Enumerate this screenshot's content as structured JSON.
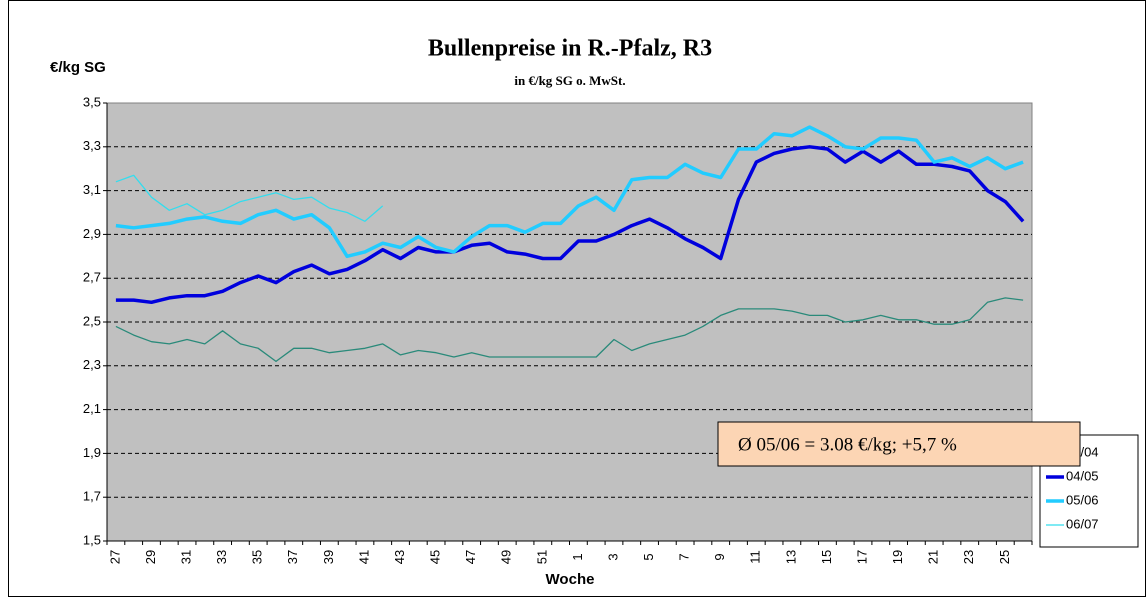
{
  "chart_data": {
    "type": "line",
    "title": "Bullenpreise in R.-Pfalz, R3",
    "subtitle": "in €/kg SG o. MwSt.",
    "y_label": "€/kg SG",
    "x_label": "Woche",
    "annotation": "Ø 05/06 = 3.08 €/kg; +5,7 %",
    "categories": [
      "27",
      null,
      "29",
      null,
      "31",
      null,
      "33",
      null,
      "35",
      null,
      "37",
      null,
      "39",
      null,
      "41",
      null,
      "43",
      null,
      "45",
      null,
      "47",
      null,
      "49",
      null,
      "51",
      null,
      "1",
      null,
      "3",
      null,
      "5",
      null,
      "7",
      null,
      "9",
      null,
      "11",
      null,
      "13",
      null,
      "15",
      null,
      "17",
      null,
      "19",
      null,
      "21",
      null,
      "23",
      null,
      "25",
      null
    ],
    "ylim": [
      1.5,
      3.5
    ],
    "yticks": [
      {
        "value": 1.5,
        "label": "1,5"
      },
      {
        "value": 1.7,
        "label": "1,7"
      },
      {
        "value": 1.9,
        "label": "1,9"
      },
      {
        "value": 2.1,
        "label": "2,1"
      },
      {
        "value": 2.3,
        "label": "2,3"
      },
      {
        "value": 2.5,
        "label": "2,5"
      },
      {
        "value": 2.7,
        "label": "2,7"
      },
      {
        "value": 2.9,
        "label": "2,9"
      },
      {
        "value": 3.1,
        "label": "3,1"
      },
      {
        "value": 3.3,
        "label": "3,3"
      },
      {
        "value": 3.5,
        "label": "3,5"
      }
    ],
    "grid": true,
    "legend": "right",
    "series": [
      {
        "name": "03/04",
        "color": "#2a8a7a",
        "width": 1.3,
        "values": [
          2.48,
          2.44,
          2.41,
          2.4,
          2.42,
          2.4,
          2.46,
          2.4,
          2.38,
          2.32,
          2.38,
          2.38,
          2.36,
          2.37,
          2.38,
          2.4,
          2.35,
          2.37,
          2.36,
          2.34,
          2.36,
          2.34,
          2.34,
          2.34,
          2.34,
          2.34,
          2.34,
          2.34,
          2.42,
          2.37,
          2.4,
          2.42,
          2.44,
          2.48,
          2.53,
          2.56,
          2.56,
          2.56,
          2.55,
          2.53,
          2.53,
          2.5,
          2.51,
          2.53,
          2.51,
          2.51,
          2.49,
          2.49,
          2.51,
          2.59,
          2.61,
          2.6
        ]
      },
      {
        "name": "04/05",
        "color": "#0000dd",
        "width": 3.5,
        "values": [
          2.6,
          2.6,
          2.59,
          2.61,
          2.62,
          2.62,
          2.64,
          2.68,
          2.71,
          2.68,
          2.73,
          2.76,
          2.72,
          2.74,
          2.78,
          2.83,
          2.79,
          2.84,
          2.82,
          2.82,
          2.85,
          2.86,
          2.82,
          2.81,
          2.79,
          2.79,
          2.87,
          2.87,
          2.9,
          2.94,
          2.97,
          2.93,
          2.88,
          2.84,
          2.79,
          3.06,
          3.23,
          3.27,
          3.29,
          3.3,
          3.29,
          3.23,
          3.28,
          3.23,
          3.28,
          3.22,
          3.22,
          3.21,
          3.19,
          3.1,
          3.05,
          2.96
        ]
      },
      {
        "name": "05/06",
        "color": "#22ccff",
        "width": 3.5,
        "values": [
          2.94,
          2.93,
          2.94,
          2.95,
          2.97,
          2.98,
          2.96,
          2.95,
          2.99,
          3.01,
          2.97,
          2.99,
          2.93,
          2.8,
          2.82,
          2.86,
          2.84,
          2.89,
          2.84,
          2.82,
          2.89,
          2.94,
          2.94,
          2.91,
          2.95,
          2.95,
          3.03,
          3.07,
          3.01,
          3.15,
          3.16,
          3.16,
          3.22,
          3.18,
          3.16,
          3.29,
          3.29,
          3.36,
          3.35,
          3.39,
          3.35,
          3.3,
          3.29,
          3.34,
          3.34,
          3.33,
          3.23,
          3.25,
          3.21,
          3.25,
          3.2,
          3.23
        ]
      },
      {
        "name": "06/07",
        "color": "#33ddee",
        "width": 1.3,
        "values": [
          3.14,
          3.17,
          3.07,
          3.01,
          3.04,
          2.99,
          3.01,
          3.05,
          3.07,
          3.09,
          3.06,
          3.07,
          3.02,
          3.0,
          2.96,
          3.03,
          null,
          null,
          null,
          null,
          null,
          null,
          null,
          null,
          null,
          null,
          null,
          null,
          null,
          null,
          null,
          null,
          null,
          null,
          null,
          null,
          null,
          null,
          null,
          null,
          null,
          null,
          null,
          null,
          null,
          null,
          null,
          null,
          null,
          null,
          null,
          null
        ]
      }
    ]
  }
}
